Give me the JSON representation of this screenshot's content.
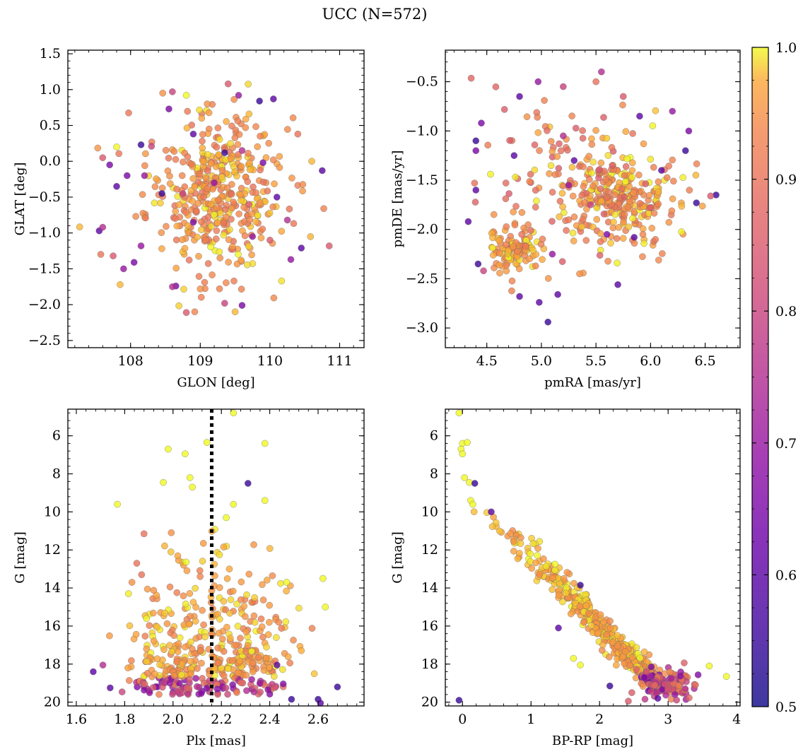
{
  "figure_title": "UCC (N=572)",
  "colorbar": {
    "colormap": "plasma",
    "range": [
      0.5,
      1.0
    ],
    "ticks": [
      "1.0",
      "0.9",
      "0.8",
      "0.7",
      "0.6",
      "0.5"
    ]
  },
  "chart_data": [
    {
      "id": "glon-glat",
      "type": "scatter",
      "title": "",
      "xlabel": "GLON [deg]",
      "ylabel": "GLAT [deg]",
      "xlim": [
        107.1,
        111.35
      ],
      "ylim": [
        -2.6,
        1.55
      ],
      "xticks": [
        108,
        109,
        110,
        111
      ],
      "yticks": [
        -2.5,
        -2.0,
        -1.5,
        -1.0,
        -0.5,
        0.0,
        0.5,
        1.0,
        1.5
      ],
      "xtick_labels": [
        "108",
        "109",
        "110",
        "111"
      ],
      "ytick_labels": [
        "−2.5",
        "−2.0",
        "−1.5",
        "−1.0",
        "−0.5",
        "0.0",
        "0.5",
        "1.0",
        "1.5"
      ],
      "y_inverted": false,
      "grid": false,
      "points": [
        {
          "x": 108.6,
          "y": 0.97,
          "p": 0.8
        },
        {
          "x": 109.4,
          "y": 1.08,
          "p": 0.85
        },
        {
          "x": 109.85,
          "y": 0.84,
          "p": 0.55
        },
        {
          "x": 110.05,
          "y": 0.87,
          "p": 0.6
        },
        {
          "x": 109.55,
          "y": 0.92,
          "p": 0.7
        },
        {
          "x": 108.55,
          "y": 0.73,
          "p": 0.65
        },
        {
          "x": 108.8,
          "y": 0.92,
          "p": 1.0
        },
        {
          "x": 109.1,
          "y": 0.8,
          "p": 0.95
        },
        {
          "x": 109.7,
          "y": 0.66,
          "p": 0.98
        },
        {
          "x": 110.4,
          "y": 0.38,
          "p": 0.9
        },
        {
          "x": 107.6,
          "y": 0.05,
          "p": 0.85
        },
        {
          "x": 107.7,
          "y": -0.05,
          "p": 0.65
        },
        {
          "x": 107.8,
          "y": 0.2,
          "p": 1.0
        },
        {
          "x": 107.8,
          "y": -0.35,
          "p": 0.6
        },
        {
          "x": 107.55,
          "y": -0.97,
          "p": 0.6
        },
        {
          "x": 107.6,
          "y": -0.92,
          "p": 0.75
        },
        {
          "x": 107.75,
          "y": -1.32,
          "p": 0.85
        },
        {
          "x": 107.9,
          "y": -1.5,
          "p": 0.7
        },
        {
          "x": 107.85,
          "y": -1.72,
          "p": 0.98
        },
        {
          "x": 108.15,
          "y": -1.18,
          "p": 0.7
        },
        {
          "x": 108.05,
          "y": -1.41,
          "p": 0.65
        },
        {
          "x": 108.65,
          "y": -1.74,
          "p": 0.65
        },
        {
          "x": 108.8,
          "y": -2.11,
          "p": 0.85
        },
        {
          "x": 109.35,
          "y": -1.98,
          "p": 0.8
        },
        {
          "x": 109.6,
          "y": -2.01,
          "p": 0.65
        },
        {
          "x": 109.5,
          "y": -2.1,
          "p": 0.98
        },
        {
          "x": 110.3,
          "y": -1.37,
          "p": 0.7
        },
        {
          "x": 110.45,
          "y": -1.21,
          "p": 0.6
        },
        {
          "x": 110.85,
          "y": -1.18,
          "p": 0.85
        },
        {
          "x": 110.75,
          "y": -0.13,
          "p": 0.6
        },
        {
          "x": 110.6,
          "y": 0.0,
          "p": 0.98
        },
        {
          "x": 108.15,
          "y": 0.23,
          "p": 0.55
        },
        {
          "x": 108.3,
          "y": 0.21,
          "p": 0.8
        },
        {
          "x": 108.2,
          "y": -0.2,
          "p": 0.7
        },
        {
          "x": 107.95,
          "y": -0.2,
          "p": 0.65
        },
        {
          "x": 109.6,
          "y": 0.15,
          "p": 0.75
        },
        {
          "x": 109.9,
          "y": -0.02,
          "p": 0.65
        },
        {
          "x": 110.1,
          "y": -0.5,
          "p": 0.6
        },
        {
          "x": 109.2,
          "y": -0.3,
          "p": 0.7
        },
        {
          "x": 109.75,
          "y": -1.05,
          "p": 0.7
        },
        {
          "x": 108.9,
          "y": -0.85,
          "p": 0.65
        },
        {
          "x": 108.6,
          "y": -1.75,
          "p": 0.75
        },
        {
          "x": 109.0,
          "y": -1.78,
          "p": 0.95
        },
        {
          "x": 110.25,
          "y": -0.82,
          "p": 0.75
        },
        {
          "x": 110.0,
          "y": -1.1,
          "p": 0.85
        },
        {
          "x": 108.9,
          "y": 0.38,
          "p": 0.6
        },
        {
          "x": 109.35,
          "y": 0.12,
          "p": 0.55
        },
        {
          "x": 108.45,
          "y": -0.45,
          "p": 0.55
        },
        {
          "x": 108.75,
          "y": -0.45,
          "p": 0.8
        },
        {
          "x": 109.7,
          "y": -0.6,
          "p": 0.85
        }
      ]
    },
    {
      "id": "pm",
      "type": "scatter",
      "title": "",
      "xlabel": "pmRA [mas/yr]",
      "ylabel": "pmDE [mas/yr]",
      "xlim": [
        4.12,
        6.82
      ],
      "ylim": [
        -3.2,
        -0.18
      ],
      "xticks": [
        4.5,
        5.0,
        5.5,
        6.0,
        6.5
      ],
      "yticks": [
        -3.0,
        -2.5,
        -2.0,
        -1.5,
        -1.0,
        -0.5
      ],
      "xtick_labels": [
        "4.5",
        "5.0",
        "5.5",
        "6.0",
        "6.5"
      ],
      "ytick_labels": [
        "−3.0",
        "−2.5",
        "−2.0",
        "−1.5",
        "−1.0",
        "−0.5"
      ],
      "y_inverted": false,
      "grid": false,
      "points": [
        {
          "x": 5.55,
          "y": -0.4,
          "p": 0.75
        },
        {
          "x": 5.5,
          "y": -0.5,
          "p": 0.9
        },
        {
          "x": 4.97,
          "y": -0.5,
          "p": 0.7
        },
        {
          "x": 5.2,
          "y": -0.55,
          "p": 0.8
        },
        {
          "x": 4.8,
          "y": -0.65,
          "p": 0.6
        },
        {
          "x": 5.75,
          "y": -0.65,
          "p": 0.85
        },
        {
          "x": 6.2,
          "y": -0.8,
          "p": 0.7
        },
        {
          "x": 4.45,
          "y": -0.92,
          "p": 0.65
        },
        {
          "x": 4.4,
          "y": -1.1,
          "p": 0.55
        },
        {
          "x": 4.4,
          "y": -1.2,
          "p": 0.65
        },
        {
          "x": 4.33,
          "y": -1.92,
          "p": 0.6
        },
        {
          "x": 4.42,
          "y": -2.35,
          "p": 0.55
        },
        {
          "x": 4.47,
          "y": -2.42,
          "p": 0.8
        },
        {
          "x": 4.8,
          "y": -2.68,
          "p": 0.6
        },
        {
          "x": 4.98,
          "y": -2.74,
          "p": 0.6
        },
        {
          "x": 5.06,
          "y": -2.94,
          "p": 0.55
        },
        {
          "x": 5.15,
          "y": -2.66,
          "p": 0.6
        },
        {
          "x": 5.7,
          "y": -2.56,
          "p": 0.6
        },
        {
          "x": 6.35,
          "y": -1.0,
          "p": 0.65
        },
        {
          "x": 6.32,
          "y": -1.2,
          "p": 0.55
        },
        {
          "x": 6.42,
          "y": -1.73,
          "p": 0.55
        },
        {
          "x": 6.6,
          "y": -1.65,
          "p": 0.55
        },
        {
          "x": 6.55,
          "y": -1.66,
          "p": 0.85
        },
        {
          "x": 5.9,
          "y": -0.85,
          "p": 0.6
        },
        {
          "x": 5.3,
          "y": -1.3,
          "p": 0.6
        },
        {
          "x": 5.6,
          "y": -2.05,
          "p": 0.65
        },
        {
          "x": 5.85,
          "y": -2.08,
          "p": 0.6
        },
        {
          "x": 4.4,
          "y": -1.6,
          "p": 0.6
        },
        {
          "x": 4.75,
          "y": -1.25,
          "p": 0.6
        },
        {
          "x": 5.25,
          "y": -1.55,
          "p": 0.7
        },
        {
          "x": 6.1,
          "y": -1.4,
          "p": 0.6
        },
        {
          "x": 5.2,
          "y": -1.05,
          "p": 0.75
        },
        {
          "x": 5.1,
          "y": -2.25,
          "p": 0.7
        },
        {
          "x": 5.45,
          "y": -1.75,
          "p": 0.8
        },
        {
          "x": 5.65,
          "y": -1.35,
          "p": 0.85
        },
        {
          "x": 4.82,
          "y": -2.05,
          "p": 0.9
        },
        {
          "x": 5.35,
          "y": -2.45,
          "p": 0.95
        }
      ]
    },
    {
      "id": "plx-g",
      "type": "scatter",
      "title": "",
      "xlabel": "Plx [mas]",
      "ylabel": "G [mag]",
      "xlim": [
        1.565,
        2.79
      ],
      "ylim": [
        20.2,
        4.6
      ],
      "xticks": [
        1.6,
        1.8,
        2.0,
        2.2,
        2.4,
        2.6
      ],
      "yticks": [
        6,
        8,
        10,
        12,
        14,
        16,
        18,
        20
      ],
      "xtick_labels": [
        "1.6",
        "1.8",
        "2.0",
        "2.2",
        "2.4",
        "2.6"
      ],
      "ytick_labels": [
        "6",
        "8",
        "10",
        "12",
        "14",
        "16",
        "18",
        "20"
      ],
      "y_inverted": true,
      "grid": false,
      "vline": {
        "x": 2.16,
        "style": "dotted",
        "color": "#000000"
      },
      "points": [
        {
          "x": 2.25,
          "y": 4.8,
          "p": 1.0
        },
        {
          "x": 2.14,
          "y": 6.35,
          "p": 1.0
        },
        {
          "x": 1.98,
          "y": 6.7,
          "p": 1.0
        },
        {
          "x": 2.38,
          "y": 6.4,
          "p": 1.0
        },
        {
          "x": 2.05,
          "y": 6.95,
          "p": 1.0
        },
        {
          "x": 2.07,
          "y": 8.2,
          "p": 1.0
        },
        {
          "x": 2.08,
          "y": 8.7,
          "p": 1.0
        },
        {
          "x": 1.96,
          "y": 8.45,
          "p": 1.0
        },
        {
          "x": 2.31,
          "y": 8.5,
          "p": 0.55
        },
        {
          "x": 1.77,
          "y": 9.6,
          "p": 1.0
        },
        {
          "x": 2.38,
          "y": 9.4,
          "p": 1.0
        },
        {
          "x": 2.25,
          "y": 9.6,
          "p": 1.0
        },
        {
          "x": 1.88,
          "y": 11.15,
          "p": 0.9
        },
        {
          "x": 2.22,
          "y": 10.3,
          "p": 1.0
        },
        {
          "x": 1.71,
          "y": 18.05,
          "p": 0.75
        },
        {
          "x": 1.67,
          "y": 18.4,
          "p": 0.6
        },
        {
          "x": 1.74,
          "y": 19.25,
          "p": 0.6
        },
        {
          "x": 2.62,
          "y": 13.5,
          "p": 1.0
        },
        {
          "x": 2.63,
          "y": 15.0,
          "p": 1.0
        },
        {
          "x": 2.68,
          "y": 19.2,
          "p": 0.55
        },
        {
          "x": 2.6,
          "y": 19.85,
          "p": 0.55
        },
        {
          "x": 2.61,
          "y": 20.05,
          "p": 0.6
        },
        {
          "x": 2.49,
          "y": 19.85,
          "p": 0.55
        },
        {
          "x": 1.85,
          "y": 12.7,
          "p": 0.9
        },
        {
          "x": 1.83,
          "y": 13.7,
          "p": 0.95
        },
        {
          "x": 1.87,
          "y": 13.3,
          "p": 0.9
        },
        {
          "x": 2.47,
          "y": 13.7,
          "p": 1.0
        },
        {
          "x": 2.43,
          "y": 18.05,
          "p": 0.6
        }
      ]
    },
    {
      "id": "cmd",
      "type": "scatter",
      "title": "",
      "xlabel": "BP-RP [mag]",
      "ylabel": "G [mag]",
      "xlim": [
        -0.25,
        4.05
      ],
      "ylim": [
        20.2,
        4.6
      ],
      "xticks": [
        0,
        1,
        2,
        3,
        4
      ],
      "yticks": [
        6,
        8,
        10,
        12,
        14,
        16,
        18,
        20
      ],
      "xtick_labels": [
        "0",
        "1",
        "2",
        "3",
        "4"
      ],
      "ytick_labels": [
        "6",
        "8",
        "10",
        "12",
        "14",
        "16",
        "18",
        "20"
      ],
      "y_inverted": true,
      "grid": false,
      "points": [
        {
          "x": -0.05,
          "y": 4.8,
          "p": 1.0
        },
        {
          "x": 0.0,
          "y": 6.4,
          "p": 1.0
        },
        {
          "x": 0.07,
          "y": 6.35,
          "p": 1.0
        },
        {
          "x": -0.02,
          "y": 6.7,
          "p": 1.0
        },
        {
          "x": 0.0,
          "y": 6.95,
          "p": 1.0
        },
        {
          "x": 0.03,
          "y": 8.2,
          "p": 1.0
        },
        {
          "x": 0.1,
          "y": 8.45,
          "p": 1.0
        },
        {
          "x": 0.18,
          "y": 8.5,
          "p": 0.55
        },
        {
          "x": 0.12,
          "y": 9.4,
          "p": 1.0
        },
        {
          "x": 0.15,
          "y": 9.6,
          "p": 1.0
        },
        {
          "x": 0.42,
          "y": 10.0,
          "p": 0.6
        },
        {
          "x": 1.35,
          "y": 12.75,
          "p": 1.0
        },
        {
          "x": 1.72,
          "y": 13.85,
          "p": 0.55
        },
        {
          "x": 1.4,
          "y": 16.1,
          "p": 0.6
        },
        {
          "x": 1.62,
          "y": 17.7,
          "p": 1.0
        },
        {
          "x": 1.72,
          "y": 18.05,
          "p": 1.0
        },
        {
          "x": 3.85,
          "y": 18.65,
          "p": 1.0
        },
        {
          "x": 3.6,
          "y": 18.1,
          "p": 1.0
        },
        {
          "x": 2.15,
          "y": 19.15,
          "p": 0.55
        },
        {
          "x": 2.42,
          "y": 19.95,
          "p": 0.85
        },
        {
          "x": -0.05,
          "y": 19.9,
          "p": 0.55
        },
        {
          "x": 2.85,
          "y": 19.8,
          "p": 0.6
        },
        {
          "x": 3.1,
          "y": 19.6,
          "p": 0.7
        },
        {
          "x": 2.65,
          "y": 18.7,
          "p": 0.65
        },
        {
          "x": 3.25,
          "y": 19.3,
          "p": 0.75
        },
        {
          "x": 2.95,
          "y": 19.05,
          "p": 0.85
        },
        {
          "x": 3.4,
          "y": 19.1,
          "p": 0.9
        },
        {
          "x": 2.75,
          "y": 19.45,
          "p": 0.8
        }
      ]
    }
  ]
}
